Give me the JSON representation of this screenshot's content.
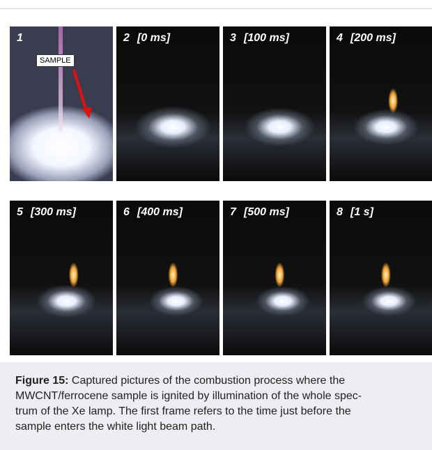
{
  "panels": [
    {
      "number": "1",
      "time": null
    },
    {
      "number": "2",
      "time": "[0 ms]"
    },
    {
      "number": "3",
      "time": "[100 ms]"
    },
    {
      "number": "4",
      "time": "[200 ms]"
    },
    {
      "number": "5",
      "time": "[300 ms]"
    },
    {
      "number": "6",
      "time": "[400 ms]"
    },
    {
      "number": "7",
      "time": "[500 ms]"
    },
    {
      "number": "8",
      "time": "[1 s]"
    }
  ],
  "sample_label": "SAMPLE",
  "caption": {
    "label": "Figure 15:",
    "lines": [
      "Captured pictures of the combustion process where the",
      "MWCNT/ferrocene sample is ignited by illumination of the whole spec-",
      "trum of the Xe lamp. The first frame refers to the time just before the",
      "sample enters the white light beam path."
    ]
  }
}
